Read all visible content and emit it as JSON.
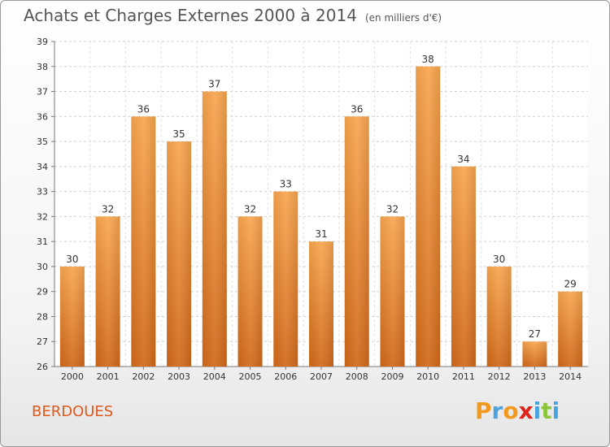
{
  "header": {
    "title": "Achats et Charges Externes 2000 à 2014",
    "subtitle": "(en milliers d'€)"
  },
  "footer": {
    "town": "BERDOUES",
    "logo": [
      "P",
      "r",
      "o",
      "x",
      "i",
      "t",
      "i"
    ]
  },
  "colors": {
    "bar_top": "#f8a64f",
    "bar_bottom": "#d2691a",
    "grid": "#d0d0d0",
    "town": "#e0581c",
    "logo": [
      "#f39a1e",
      "#4aa3df",
      "#f39a1e",
      "#e2231a",
      "#4aa3df",
      "#8cc63f",
      "#4aa3df"
    ]
  },
  "chart_data": {
    "type": "bar",
    "title": "Achats et Charges Externes 2000 à 2014",
    "subtitle": "(en milliers d'€)",
    "categories": [
      "2000",
      "2001",
      "2002",
      "2003",
      "2004",
      "2005",
      "2006",
      "2007",
      "2008",
      "2009",
      "2010",
      "2011",
      "2012",
      "2013",
      "2014"
    ],
    "values": [
      30,
      32,
      36,
      35,
      37,
      32,
      33,
      31,
      36,
      32,
      38,
      34,
      30,
      27,
      29
    ],
    "ylim": [
      26,
      39
    ],
    "yticks": [
      26,
      27,
      28,
      29,
      30,
      31,
      32,
      33,
      34,
      35,
      36,
      37,
      38,
      39
    ],
    "grid": "horizontal dashed",
    "legend": "none"
  }
}
